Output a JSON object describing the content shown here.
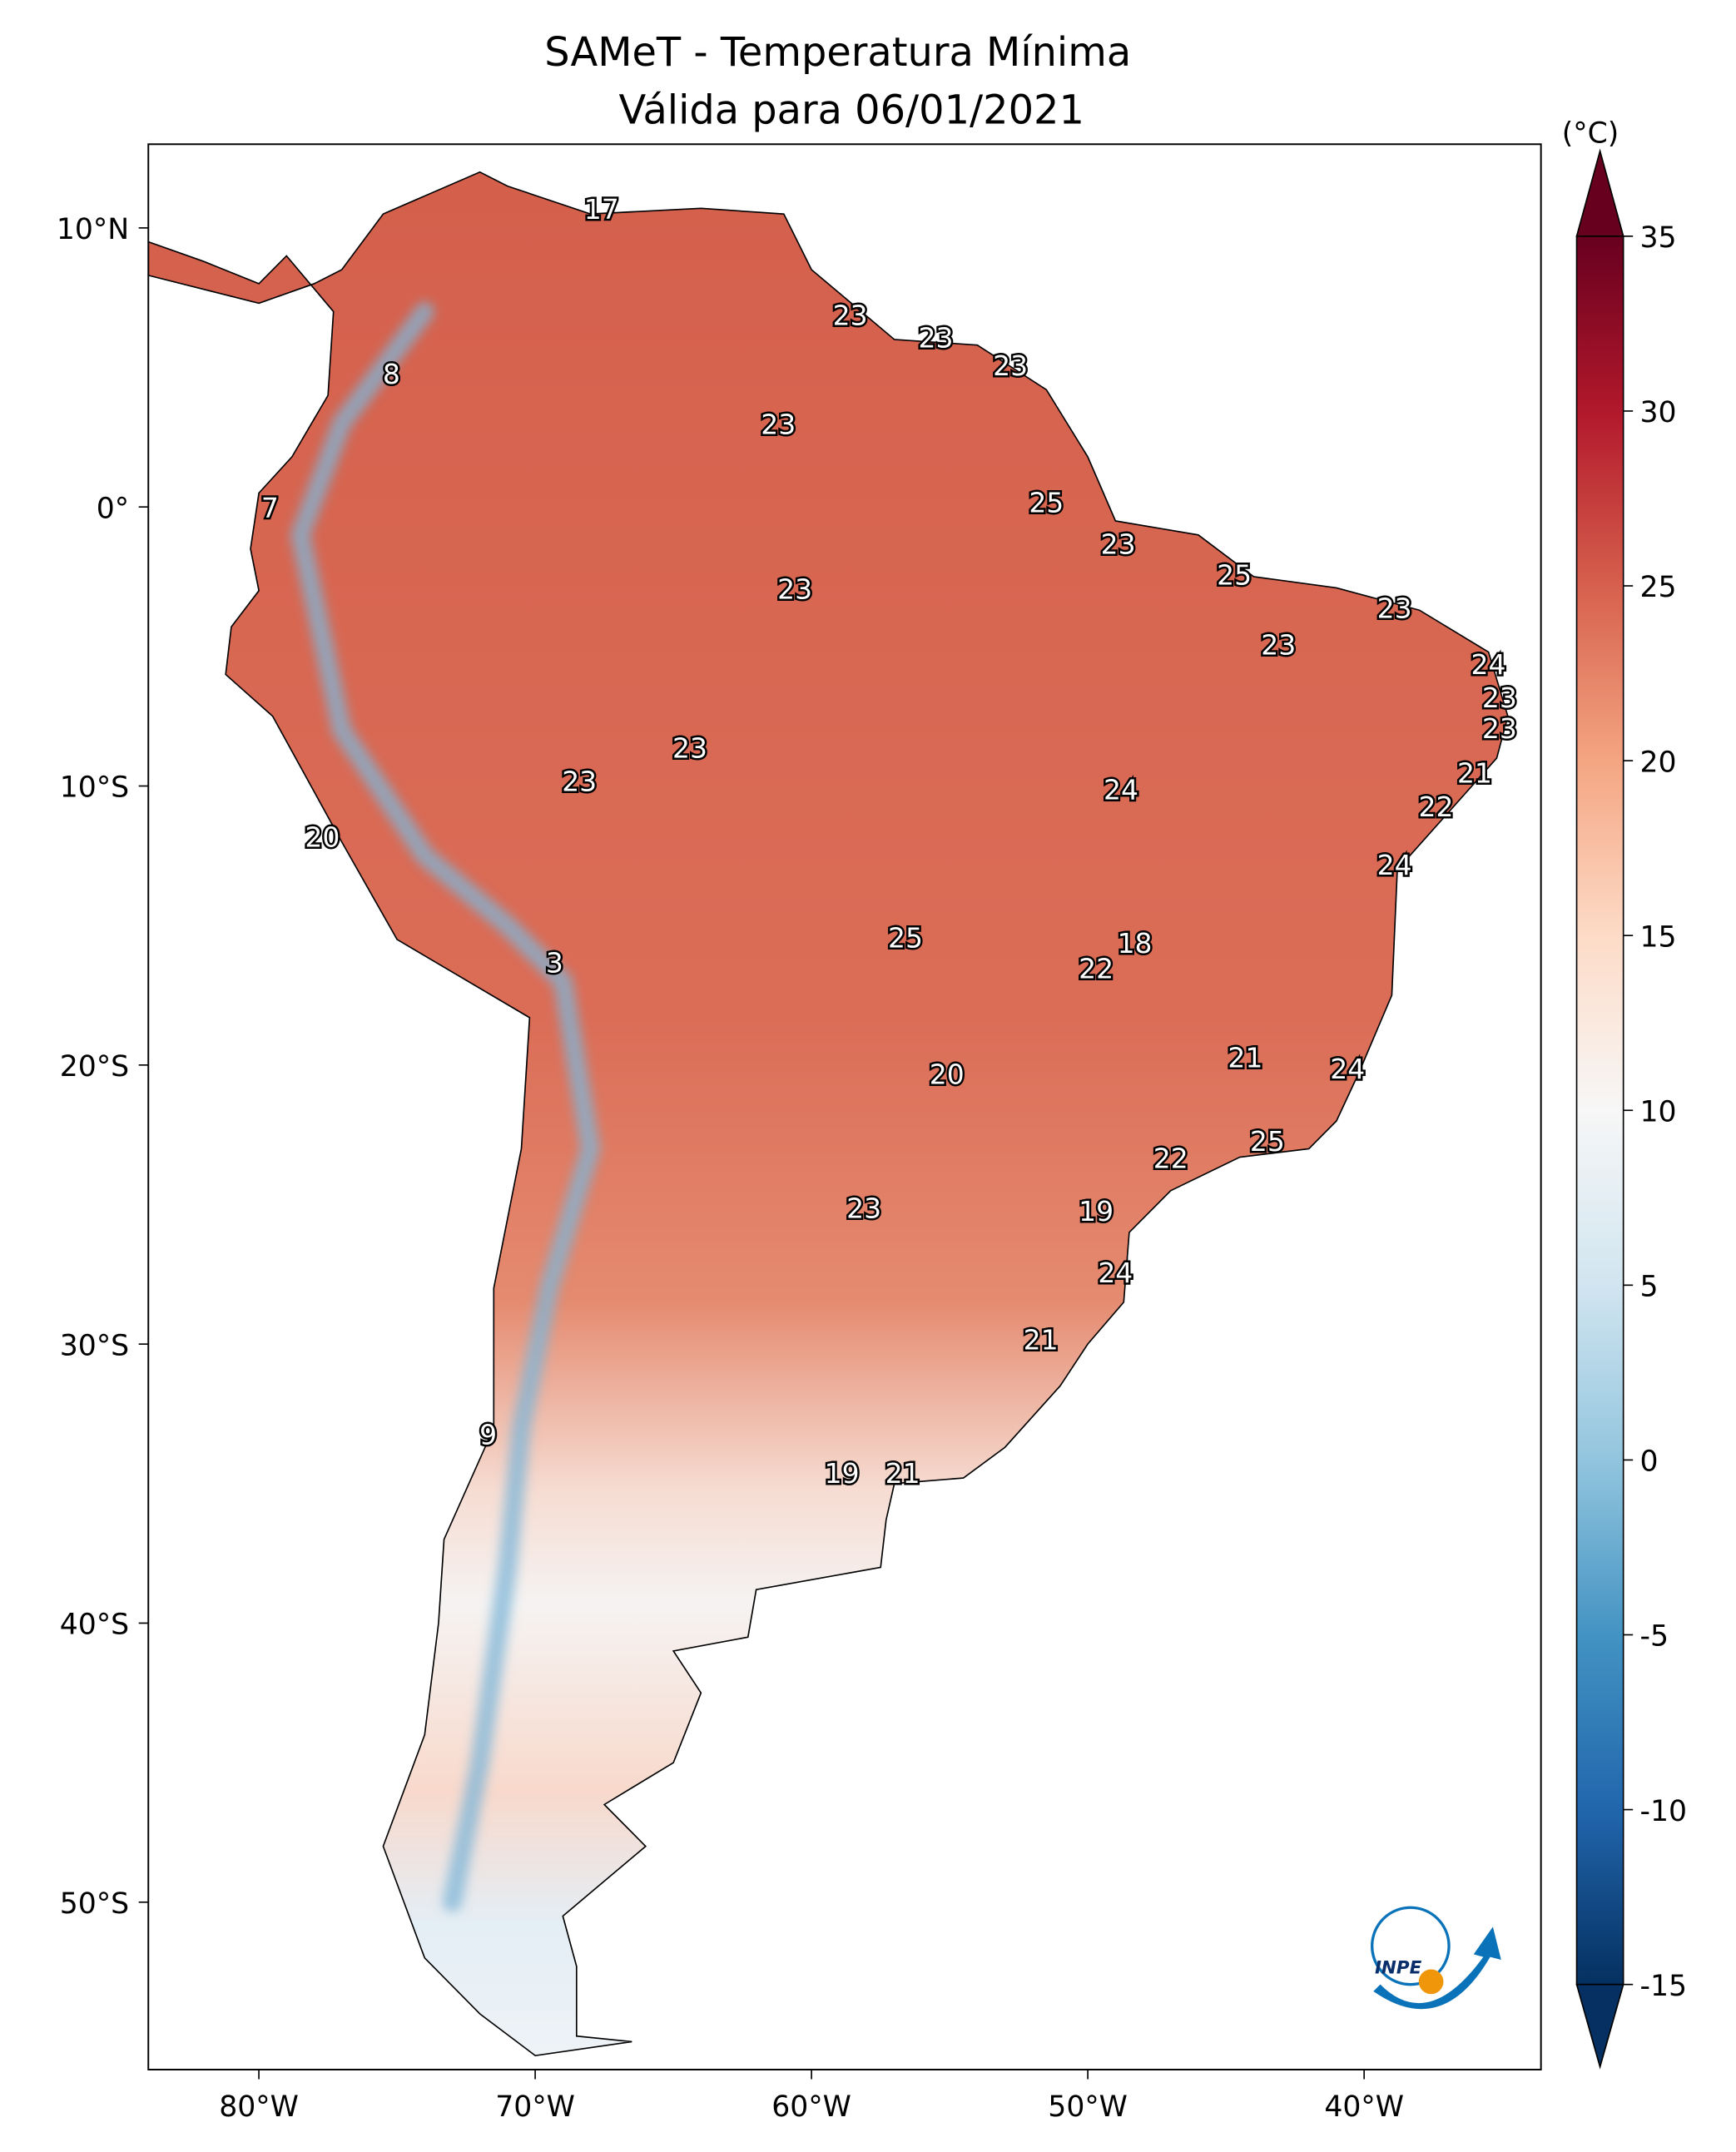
{
  "title": {
    "line1": "SAMeT - Temperatura Mínima",
    "line2": "Válida para 06/01/2021"
  },
  "map": {
    "projection": "PlateCarree",
    "lon_range": [
      -84,
      -33.6
    ],
    "lat_range": [
      -56,
      13
    ],
    "lon_ticks": [
      {
        "value": -80,
        "label": "80°W"
      },
      {
        "value": -70,
        "label": "70°W"
      },
      {
        "value": -60,
        "label": "60°W"
      },
      {
        "value": -50,
        "label": "50°W"
      },
      {
        "value": -40,
        "label": "40°W"
      }
    ],
    "lat_ticks": [
      {
        "value": 10,
        "label": "10°N"
      },
      {
        "value": 0,
        "label": "0°"
      },
      {
        "value": -10,
        "label": "10°S"
      },
      {
        "value": -20,
        "label": "20°S"
      },
      {
        "value": -30,
        "label": "30°S"
      },
      {
        "value": -40,
        "label": "40°S"
      },
      {
        "value": -50,
        "label": "50°S"
      }
    ],
    "station_labels": [
      {
        "lon": -67.6,
        "lat": 10.6,
        "value": "17"
      },
      {
        "lon": -75.2,
        "lat": 4.7,
        "value": "8"
      },
      {
        "lon": -79.6,
        "lat": -0.1,
        "value": "7"
      },
      {
        "lon": -58.6,
        "lat": 6.8,
        "value": "23"
      },
      {
        "lon": -55.5,
        "lat": 6.0,
        "value": "23"
      },
      {
        "lon": -52.8,
        "lat": 5.0,
        "value": "23"
      },
      {
        "lon": -61.2,
        "lat": 2.9,
        "value": "23"
      },
      {
        "lon": -51.5,
        "lat": 0.1,
        "value": "25"
      },
      {
        "lon": -48.9,
        "lat": -1.4,
        "value": "23"
      },
      {
        "lon": -44.7,
        "lat": -2.5,
        "value": "25"
      },
      {
        "lon": -38.9,
        "lat": -3.7,
        "value": "23"
      },
      {
        "lon": -43.1,
        "lat": -5.0,
        "value": "23"
      },
      {
        "lon": -60.6,
        "lat": -3.0,
        "value": "23"
      },
      {
        "lon": -35.5,
        "lat": -5.7,
        "value": "24"
      },
      {
        "lon": -35.1,
        "lat": -6.9,
        "value": "23"
      },
      {
        "lon": -35.1,
        "lat": -8.0,
        "value": "23"
      },
      {
        "lon": -36.0,
        "lat": -9.6,
        "value": "21"
      },
      {
        "lon": -37.4,
        "lat": -10.8,
        "value": "22"
      },
      {
        "lon": -38.9,
        "lat": -12.9,
        "value": "24"
      },
      {
        "lon": -48.8,
        "lat": -10.2,
        "value": "24"
      },
      {
        "lon": -64.4,
        "lat": -8.7,
        "value": "23"
      },
      {
        "lon": -68.4,
        "lat": -9.9,
        "value": "23"
      },
      {
        "lon": -77.7,
        "lat": -11.9,
        "value": "20"
      },
      {
        "lon": -56.6,
        "lat": -15.5,
        "value": "25"
      },
      {
        "lon": -48.3,
        "lat": -15.7,
        "value": "18"
      },
      {
        "lon": -49.7,
        "lat": -16.6,
        "value": "22"
      },
      {
        "lon": -69.3,
        "lat": -16.4,
        "value": "3"
      },
      {
        "lon": -44.3,
        "lat": -19.8,
        "value": "21"
      },
      {
        "lon": -40.6,
        "lat": -20.2,
        "value": "24"
      },
      {
        "lon": -55.1,
        "lat": -20.4,
        "value": "20"
      },
      {
        "lon": -43.5,
        "lat": -22.8,
        "value": "25"
      },
      {
        "lon": -47.0,
        "lat": -23.4,
        "value": "22"
      },
      {
        "lon": -58.1,
        "lat": -25.2,
        "value": "23"
      },
      {
        "lon": -49.7,
        "lat": -25.3,
        "value": "19"
      },
      {
        "lon": -49.0,
        "lat": -27.5,
        "value": "24"
      },
      {
        "lon": -51.7,
        "lat": -29.9,
        "value": "21"
      },
      {
        "lon": -71.7,
        "lat": -33.3,
        "value": "9"
      },
      {
        "lon": -58.9,
        "lat": -34.7,
        "value": "19"
      },
      {
        "lon": -56.7,
        "lat": -34.7,
        "value": "21"
      }
    ]
  },
  "colorbar": {
    "unit": "(°C)",
    "colormap": "RdBu_r",
    "range": [
      -15,
      35
    ],
    "extend": "both",
    "ticks": [
      "35",
      "30",
      "25",
      "20",
      "15",
      "10",
      "5",
      "0",
      "-5",
      "-10",
      "-15"
    ],
    "colors": [
      "#053061",
      "#2166ac",
      "#4393c3",
      "#92c5de",
      "#d1e5f0",
      "#f7f7f7",
      "#fddbc7",
      "#f4a582",
      "#d6604d",
      "#b2182b",
      "#67001f"
    ]
  },
  "logo": {
    "text": "INPE",
    "colors": {
      "blue": "#0a72b8",
      "orange": "#f0960a"
    }
  }
}
